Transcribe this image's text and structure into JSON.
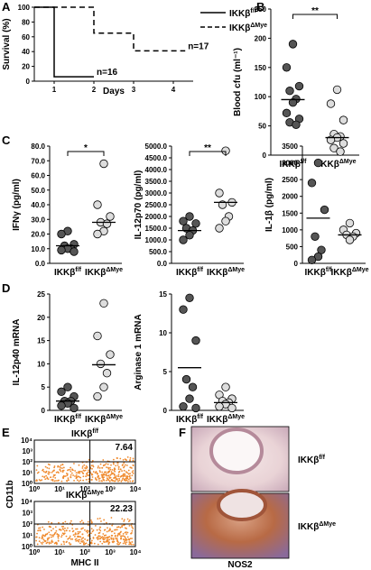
{
  "chart_data": [
    {
      "type": "line",
      "xlabel": "Days",
      "ylabel": "Survival (%)",
      "xlim": [
        0.5,
        4.5
      ],
      "xticks": [
        1,
        2,
        3,
        4
      ],
      "ylim": [
        0,
        100
      ],
      "yticks": [
        0,
        20,
        40,
        60,
        80,
        100
      ],
      "series": [
        {
          "name": "IKKβf/f",
          "color": "#000000",
          "dash": false,
          "x": [
            0.5,
            1,
            1,
            2
          ],
          "values": [
            100,
            100,
            6,
            6
          ]
        },
        {
          "name": "IKKβΔMye",
          "color": "#000000",
          "dash": true,
          "x": [
            0.5,
            2,
            2,
            3,
            3,
            4.3
          ],
          "values": [
            100,
            100,
            65,
            65,
            41,
            41
          ]
        }
      ],
      "annotations": [
        {
          "text": "n=16",
          "x": 2,
          "y": 6
        },
        {
          "text": "n=17",
          "x": 4.3,
          "y": 41
        }
      ]
    },
    {
      "type": "strip",
      "ylabel": "Blood cfu (ml⁻¹)",
      "categories": [
        "IKKβf/f",
        "IKKβΔMye"
      ],
      "colors": [
        "#555555",
        "#dddddd"
      ],
      "ylim": [
        0,
        250
      ],
      "yticks": [
        0,
        50,
        100,
        150,
        200,
        250
      ],
      "values": [
        [
          190,
          150,
          118,
          110,
          96,
          90,
          72,
          62,
          56,
          52
        ],
        [
          112,
          88,
          60,
          36,
          32,
          30,
          26,
          20,
          12,
          6
        ]
      ],
      "center_lines": [
        95,
        30
      ],
      "significance": "**"
    },
    {
      "type": "strip",
      "ylabel": "IFNγ (pg/ml)",
      "categories": [
        "IKKβf/f",
        "IKKβΔMye"
      ],
      "colors": [
        "#555555",
        "#dddddd"
      ],
      "ylim": [
        0,
        80
      ],
      "yticks": [
        {
          "value": 0,
          "label": "0.0"
        },
        {
          "value": 10,
          "label": "10.0"
        },
        {
          "value": 20,
          "label": "20.0"
        },
        {
          "value": 30,
          "label": "30.0"
        },
        {
          "value": 40,
          "label": "40.0"
        },
        {
          "value": 50,
          "label": "50.0"
        },
        {
          "value": 60,
          "label": "60.0"
        },
        {
          "value": 70,
          "label": "70.0"
        },
        {
          "value": 80,
          "label": "80.0"
        }
      ],
      "values": [
        [
          22,
          20,
          13,
          12,
          10,
          10,
          9,
          8
        ],
        [
          68,
          40,
          32,
          28,
          27,
          22,
          20
        ]
      ],
      "center_lines": [
        12,
        28
      ],
      "significance": "*"
    },
    {
      "type": "strip",
      "ylabel": "IL-12p70 (pg/ml)",
      "categories": [
        "IKKβf/f",
        "IKKβΔMye"
      ],
      "colors": [
        "#555555",
        "#dddddd"
      ],
      "ylim": [
        0,
        5000
      ],
      "yticks": [
        {
          "value": 0,
          "label": "0.0"
        },
        {
          "value": 500,
          "label": "500.0"
        },
        {
          "value": 1000,
          "label": "1000.0"
        },
        {
          "value": 1500,
          "label": "1500.0"
        },
        {
          "value": 2000,
          "label": "2000.0"
        },
        {
          "value": 2500,
          "label": "2500.0"
        },
        {
          "value": 3000,
          "label": "3000.0"
        },
        {
          "value": 3500,
          "label": "3500.0"
        },
        {
          "value": 4000,
          "label": "4000.0"
        },
        {
          "value": 4500,
          "label": "4500.0"
        },
        {
          "value": 5000,
          "label": "5000.0"
        }
      ],
      "values": [
        [
          2000,
          1800,
          1700,
          1500,
          1400,
          1200,
          1000
        ],
        [
          4800,
          3000,
          2600,
          2500,
          2000,
          1800,
          1500
        ]
      ],
      "center_lines": [
        1400,
        2600
      ],
      "significance": "**"
    },
    {
      "type": "strip",
      "ylabel": "IL-1β (pg/ml)",
      "categories": [
        "IKKβf/f",
        "IKKβΔMye"
      ],
      "colors": [
        "#555555",
        "#dddddd"
      ],
      "ylim": [
        0,
        3500
      ],
      "yticks": [
        0,
        500,
        1000,
        1500,
        2000,
        2500,
        3000,
        3500
      ],
      "values": [
        [
          3000,
          2400,
          1600,
          800,
          400,
          200,
          100
        ],
        [
          1200,
          1000,
          900,
          850,
          800,
          700
        ]
      ],
      "center_lines": [
        1350,
        850
      ]
    },
    {
      "type": "strip",
      "ylabel": "IL-12p40 mRNA",
      "categories": [
        "IKKβf/f",
        "IKKβΔMye"
      ],
      "colors": [
        "#555555",
        "#dddddd"
      ],
      "ylim": [
        0,
        25
      ],
      "yticks": [
        0,
        5,
        10,
        15,
        20,
        25
      ],
      "values": [
        [
          5,
          4,
          3,
          2,
          2,
          1.5,
          1,
          0.5
        ],
        [
          23,
          16,
          12,
          10,
          8,
          5,
          3
        ]
      ],
      "center_lines": [
        2,
        9.8
      ]
    },
    {
      "type": "strip",
      "ylabel": "Arginase 1 mRNA",
      "categories": [
        "IKKβf/f",
        "IKKβΔMye"
      ],
      "colors": [
        "#555555",
        "#dddddd"
      ],
      "ylim": [
        0,
        15
      ],
      "yticks": [
        0,
        5,
        10,
        15
      ],
      "values": [
        [
          14.5,
          13,
          9,
          4,
          3,
          1.5,
          0.5,
          0.3
        ],
        [
          3,
          2,
          1.5,
          1.2,
          1,
          0.8,
          0.5,
          0.3
        ]
      ],
      "center_lines": [
        5.5,
        1
      ]
    }
  ],
  "panel_labels": [
    "A",
    "B",
    "C",
    "D",
    "E",
    "F"
  ],
  "flow": {
    "titles": [
      "IKKβf/f",
      "IKKβΔMye"
    ],
    "percentages": [
      7.64,
      22.23
    ],
    "ylabel": "CD11b",
    "xlabel": "MHC II",
    "ticks": [
      "10⁰",
      "10¹",
      "10²",
      "10³",
      "10⁴"
    ]
  },
  "histology": {
    "labels": [
      "IKKβf/f",
      "IKKβΔMye"
    ],
    "stain": "NOS2"
  }
}
